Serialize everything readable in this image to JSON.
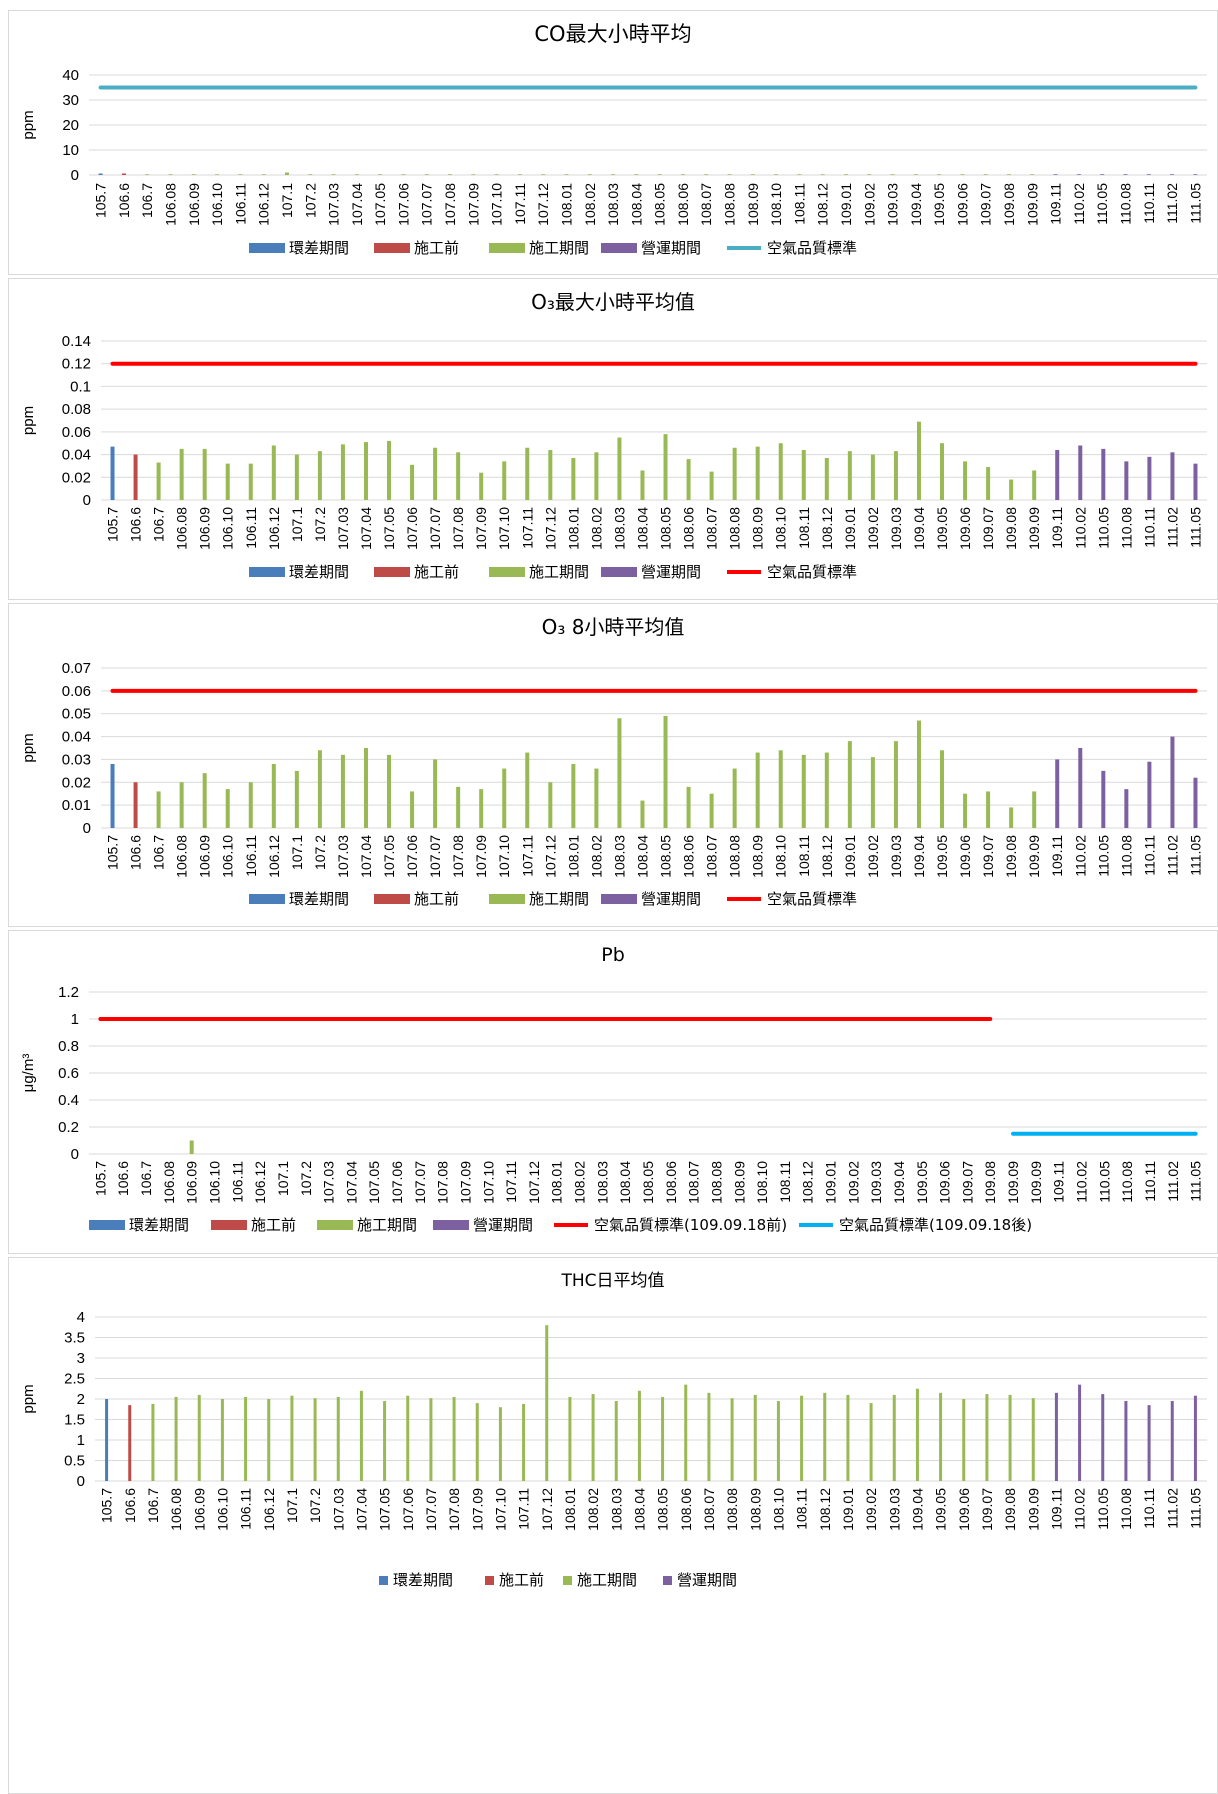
{
  "colors": {
    "env": "#4a7ebb",
    "pre": "#be4b48",
    "construct": "#98b954",
    "operate": "#7d60a0",
    "std_red": "#ff0000",
    "std_cyan": "#4bacc6",
    "std_blue": "#00b0f0",
    "grid": "#d9d9d9"
  },
  "chart_data": [
    {
      "type": "bar",
      "title": "CO最大小時平均",
      "ylabel": "ppm",
      "ylim": [
        0,
        40
      ],
      "yticks": [
        0,
        10,
        20,
        30,
        40
      ],
      "yticklabels": [
        "0",
        "10",
        "20",
        "30",
        "40"
      ],
      "categories": [
        "105.7",
        "106.6",
        "106.7",
        "106.08",
        "106.09",
        "106.10",
        "106.11",
        "106.12",
        "107.1",
        "107.2",
        "107.03",
        "107.04",
        "107.05",
        "107.06",
        "107.07",
        "107.08",
        "107.09",
        "107.10",
        "107.11",
        "107.12",
        "108.01",
        "108.02",
        "108.03",
        "108.04",
        "108.05",
        "108.06",
        "108.07",
        "108.08",
        "108.09",
        "108.10",
        "108.11",
        "108.12",
        "109.01",
        "109.02",
        "109.03",
        "109.04",
        "109.05",
        "109.06",
        "109.07",
        "109.08",
        "109.09",
        "109.11",
        "110.02",
        "110.05",
        "110.08",
        "110.11",
        "111.02",
        "111.05"
      ],
      "phases": [
        0,
        1,
        2,
        2,
        2,
        2,
        2,
        2,
        2,
        2,
        2,
        2,
        2,
        2,
        2,
        2,
        2,
        2,
        2,
        2,
        2,
        2,
        2,
        2,
        2,
        2,
        2,
        2,
        2,
        2,
        2,
        2,
        2,
        2,
        2,
        2,
        2,
        2,
        2,
        2,
        2,
        3,
        3,
        3,
        3,
        3,
        3,
        3
      ],
      "values": [
        0.6,
        0.6,
        0.3,
        0.3,
        0.3,
        0.3,
        0.3,
        0.3,
        1.0,
        0.3,
        0.3,
        0.3,
        0.3,
        0.3,
        0.3,
        0.3,
        0.3,
        0.3,
        0.3,
        0.3,
        0.3,
        0.3,
        0.3,
        0.3,
        0.3,
        0.3,
        0.3,
        0.3,
        0.3,
        0.3,
        0.3,
        0.3,
        0.3,
        0.3,
        0.3,
        0.3,
        0.3,
        0.3,
        0.3,
        0.3,
        0.3,
        0.3,
        0.3,
        0.3,
        0.3,
        0.3,
        0.3,
        0.3
      ],
      "standards": [
        {
          "name": "空氣品質標準",
          "value": 35,
          "from": 0,
          "to": 47,
          "color": "#4bacc6"
        }
      ],
      "legend": [
        "環差期間",
        "施工前",
        "施工期間",
        "營運期間",
        "空氣品質標準"
      ]
    },
    {
      "type": "bar",
      "title": "O₃最大小時平均值",
      "ylabel": "ppm",
      "ylim": [
        0,
        0.14
      ],
      "yticks": [
        0,
        0.02,
        0.04,
        0.06,
        0.08,
        0.1,
        0.12,
        0.14
      ],
      "yticklabels": [
        "0",
        "0.02",
        "0.04",
        "0.06",
        "0.08",
        "0.1",
        "0.12",
        "0.14"
      ],
      "categories": [
        "105.7",
        "106.6",
        "106.7",
        "106.08",
        "106.09",
        "106.10",
        "106.11",
        "106.12",
        "107.1",
        "107.2",
        "107.03",
        "107.04",
        "107.05",
        "107.06",
        "107.07",
        "107.08",
        "107.09",
        "107.10",
        "107.11",
        "107.12",
        "108.01",
        "108.02",
        "108.03",
        "108.04",
        "108.05",
        "108.06",
        "108.07",
        "108.08",
        "108.09",
        "108.10",
        "108.11",
        "108.12",
        "109.01",
        "109.02",
        "109.03",
        "109.04",
        "109.05",
        "109.06",
        "109.07",
        "109.08",
        "109.09",
        "109.11",
        "110.02",
        "110.05",
        "110.08",
        "110.11",
        "111.02",
        "111.05"
      ],
      "phases": [
        0,
        1,
        2,
        2,
        2,
        2,
        2,
        2,
        2,
        2,
        2,
        2,
        2,
        2,
        2,
        2,
        2,
        2,
        2,
        2,
        2,
        2,
        2,
        2,
        2,
        2,
        2,
        2,
        2,
        2,
        2,
        2,
        2,
        2,
        2,
        2,
        2,
        2,
        2,
        2,
        2,
        3,
        3,
        3,
        3,
        3,
        3,
        3
      ],
      "values": [
        0.047,
        0.04,
        0.033,
        0.045,
        0.045,
        0.032,
        0.032,
        0.048,
        0.04,
        0.043,
        0.049,
        0.051,
        0.052,
        0.031,
        0.046,
        0.042,
        0.024,
        0.034,
        0.046,
        0.044,
        0.037,
        0.042,
        0.055,
        0.026,
        0.058,
        0.036,
        0.025,
        0.046,
        0.047,
        0.05,
        0.044,
        0.037,
        0.043,
        0.04,
        0.043,
        0.069,
        0.05,
        0.034,
        0.029,
        0.018,
        0.026,
        0.044,
        0.048,
        0.045,
        0.034,
        0.038,
        0.042,
        0.032
      ],
      "standards": [
        {
          "name": "空氣品質標準",
          "value": 0.12,
          "from": 0,
          "to": 47,
          "color": "#ff0000"
        }
      ],
      "legend": [
        "環差期間",
        "施工前",
        "施工期間",
        "營運期間",
        "空氣品質標準"
      ]
    },
    {
      "type": "bar",
      "title": "O₃ 8小時平均值",
      "ylabel": "ppm",
      "ylim": [
        0,
        0.07
      ],
      "yticks": [
        0,
        0.01,
        0.02,
        0.03,
        0.04,
        0.05,
        0.06,
        0.07
      ],
      "yticklabels": [
        "0",
        "0.01",
        "0.02",
        "0.03",
        "0.04",
        "0.05",
        "0.06",
        "0.07"
      ],
      "categories": [
        "105.7",
        "106.6",
        "106.7",
        "106.08",
        "106.09",
        "106.10",
        "106.11",
        "106.12",
        "107.1",
        "107.2",
        "107.03",
        "107.04",
        "107.05",
        "107.06",
        "107.07",
        "107.08",
        "107.09",
        "107.10",
        "107.11",
        "107.12",
        "108.01",
        "108.02",
        "108.03",
        "108.04",
        "108.05",
        "108.06",
        "108.07",
        "108.08",
        "108.09",
        "108.10",
        "108.11",
        "108.12",
        "109.01",
        "109.02",
        "109.03",
        "109.04",
        "109.05",
        "109.06",
        "109.07",
        "109.08",
        "109.09",
        "109.11",
        "110.02",
        "110.05",
        "110.08",
        "110.11",
        "111.02",
        "111.05"
      ],
      "phases": [
        0,
        1,
        2,
        2,
        2,
        2,
        2,
        2,
        2,
        2,
        2,
        2,
        2,
        2,
        2,
        2,
        2,
        2,
        2,
        2,
        2,
        2,
        2,
        2,
        2,
        2,
        2,
        2,
        2,
        2,
        2,
        2,
        2,
        2,
        2,
        2,
        2,
        2,
        2,
        2,
        2,
        3,
        3,
        3,
        3,
        3,
        3,
        3
      ],
      "values": [
        0.028,
        0.02,
        0.016,
        0.02,
        0.024,
        0.017,
        0.02,
        0.028,
        0.025,
        0.034,
        0.032,
        0.035,
        0.032,
        0.016,
        0.03,
        0.018,
        0.017,
        0.026,
        0.033,
        0.02,
        0.028,
        0.026,
        0.048,
        0.012,
        0.049,
        0.018,
        0.015,
        0.026,
        0.033,
        0.034,
        0.032,
        0.033,
        0.038,
        0.031,
        0.038,
        0.047,
        0.034,
        0.015,
        0.016,
        0.009,
        0.016,
        0.03,
        0.035,
        0.025,
        0.017,
        0.029,
        0.04,
        0.022
      ],
      "standards": [
        {
          "name": "空氣品質標準",
          "value": 0.06,
          "from": 0,
          "to": 47,
          "color": "#ff0000"
        }
      ],
      "legend": [
        "環差期間",
        "施工前",
        "施工期間",
        "營運期間",
        "空氣品質標準"
      ]
    },
    {
      "type": "bar",
      "title": "Pb",
      "ylabel": "μg/m³",
      "ylim": [
        0,
        1.2
      ],
      "yticks": [
        0,
        0.2,
        0.4,
        0.6,
        0.8,
        1,
        1.2
      ],
      "yticklabels": [
        "0",
        "0.2",
        "0.4",
        "0.6",
        "0.8",
        "1",
        "1.2"
      ],
      "categories": [
        "105.7",
        "106.6",
        "106.7",
        "106.08",
        "106.09",
        "106.10",
        "106.11",
        "106.12",
        "107.1",
        "107.2",
        "107.03",
        "107.04",
        "107.05",
        "107.06",
        "107.07",
        "107.08",
        "107.09",
        "107.10",
        "107.11",
        "107.12",
        "108.01",
        "108.02",
        "108.03",
        "108.04",
        "108.05",
        "108.06",
        "108.07",
        "108.08",
        "108.09",
        "108.10",
        "108.11",
        "108.12",
        "109.01",
        "109.02",
        "109.03",
        "109.04",
        "109.05",
        "109.06",
        "109.07",
        "109.08",
        "109.09",
        "109.09",
        "109.11",
        "110.02",
        "110.05",
        "110.08",
        "110.11",
        "111.02",
        "111.05"
      ],
      "phases": [
        0,
        1,
        2,
        2,
        2,
        2,
        2,
        2,
        2,
        2,
        2,
        2,
        2,
        2,
        2,
        2,
        2,
        2,
        2,
        2,
        2,
        2,
        2,
        2,
        2,
        2,
        2,
        2,
        2,
        2,
        2,
        2,
        2,
        2,
        2,
        2,
        2,
        2,
        2,
        2,
        2,
        2,
        3,
        3,
        3,
        3,
        3,
        3,
        3
      ],
      "values": [
        0,
        0,
        0,
        0,
        0.1,
        0,
        0,
        0,
        0,
        0,
        0,
        0,
        0,
        0,
        0,
        0,
        0,
        0,
        0,
        0,
        0,
        0,
        0,
        0,
        0,
        0,
        0,
        0,
        0,
        0,
        0,
        0,
        0,
        0,
        0,
        0,
        0,
        0,
        0,
        0,
        0,
        0,
        0,
        0,
        0,
        0,
        0,
        0,
        0
      ],
      "standards": [
        {
          "name": "空氣品質標準(109.09.18前)",
          "value": 1,
          "from": 0,
          "to": 39,
          "color": "#ff0000"
        },
        {
          "name": "空氣品質標準(109.09.18後)",
          "value": 0.15,
          "from": 40,
          "to": 48,
          "color": "#00b0f0"
        }
      ],
      "legend": [
        "環差期間",
        "施工前",
        "施工期間",
        "營運期間",
        "空氣品質標準(109.09.18前)",
        "空氣品質標準(109.09.18後)"
      ]
    },
    {
      "type": "bar",
      "title": "THC日平均值",
      "ylabel": "ppm",
      "ylim": [
        0,
        4
      ],
      "yticks": [
        0,
        0.5,
        1,
        1.5,
        2,
        2.5,
        3,
        3.5,
        4
      ],
      "yticklabels": [
        "0",
        "0.5",
        "1",
        "1.5",
        "2",
        "2.5",
        "3",
        "3.5",
        "4"
      ],
      "categories": [
        "105.7",
        "106.6",
        "106.7",
        "106.08",
        "106.09",
        "106.10",
        "106.11",
        "106.12",
        "107.1",
        "107.2",
        "107.03",
        "107.04",
        "107.05",
        "107.06",
        "107.07",
        "107.08",
        "107.09",
        "107.10",
        "107.11",
        "107.12",
        "108.01",
        "108.02",
        "108.03",
        "108.04",
        "108.05",
        "108.06",
        "108.07",
        "108.08",
        "108.09",
        "108.10",
        "108.11",
        "108.12",
        "109.01",
        "109.02",
        "109.03",
        "109.04",
        "109.05",
        "109.06",
        "109.07",
        "109.08",
        "109.09",
        "109.11",
        "110.02",
        "110.05",
        "110.08",
        "110.11",
        "111.02",
        "111.05"
      ],
      "phases": [
        0,
        1,
        2,
        2,
        2,
        2,
        2,
        2,
        2,
        2,
        2,
        2,
        2,
        2,
        2,
        2,
        2,
        2,
        2,
        2,
        2,
        2,
        2,
        2,
        2,
        2,
        2,
        2,
        2,
        2,
        2,
        2,
        2,
        2,
        2,
        2,
        2,
        2,
        2,
        2,
        2,
        3,
        3,
        3,
        3,
        3,
        3,
        3
      ],
      "values": [
        2.0,
        1.85,
        1.88,
        2.05,
        2.1,
        2.0,
        2.05,
        2.0,
        2.08,
        2.02,
        2.05,
        2.2,
        1.95,
        2.08,
        2.02,
        2.05,
        1.9,
        1.8,
        1.88,
        3.8,
        2.05,
        2.12,
        1.95,
        2.2,
        2.05,
        2.35,
        2.15,
        2.02,
        2.1,
        1.95,
        2.08,
        2.15,
        2.1,
        1.9,
        2.1,
        2.25,
        2.15,
        2.0,
        2.12,
        2.1,
        2.02,
        2.15,
        2.35,
        2.12,
        1.95,
        1.85,
        1.95,
        2.08
      ],
      "standards": [],
      "legend": [
        "環差期間",
        "施工前",
        "施工期間",
        "營運期間"
      ]
    }
  ]
}
